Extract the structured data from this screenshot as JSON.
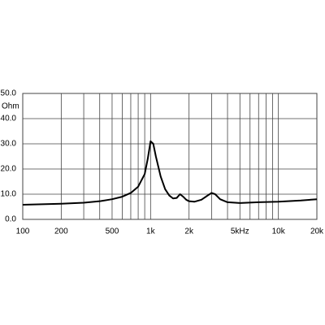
{
  "chart_data": {
    "type": "line",
    "xscale": "log",
    "grid": true,
    "color": "#000000",
    "ylabel": "Ohm",
    "x": [
      100,
      200,
      300,
      400,
      500,
      600,
      700,
      800,
      900,
      950,
      1000,
      1050,
      1100,
      1200,
      1300,
      1400,
      1500,
      1600,
      1700,
      1800,
      1900,
      2000,
      2200,
      2500,
      2800,
      3000,
      3200,
      3500,
      4000,
      5000,
      7000,
      10000,
      15000,
      20000
    ],
    "values": [
      5.8,
      6.2,
      6.6,
      7.2,
      8.0,
      9.0,
      10.5,
      13,
      18,
      24,
      31,
      30,
      25,
      17,
      12,
      9.5,
      8.3,
      8.5,
      10,
      9,
      7.8,
      7.2,
      7,
      7.8,
      9.5,
      10.5,
      10,
      8,
      6.8,
      6.5,
      6.8,
      7,
      7.5,
      8
    ],
    "xlim": [
      100,
      20000
    ],
    "ylim": [
      0,
      50
    ],
    "xticks": [
      100,
      200,
      500,
      {
        "value": 1000,
        "label": "1k"
      },
      {
        "value": 2000,
        "label": "2k"
      },
      {
        "value": 5000,
        "label": "5kHz"
      },
      {
        "value": 10000,
        "label": "10k"
      },
      {
        "value": 20000,
        "label": "20k"
      }
    ],
    "xminorticks": [
      300,
      400,
      600,
      700,
      800,
      900,
      3000,
      4000,
      6000,
      7000,
      8000,
      9000
    ],
    "yticks": [
      {
        "value": 0,
        "label": "0.0"
      },
      {
        "value": 10,
        "label": "10.0"
      },
      {
        "value": 20,
        "label": "20.0"
      },
      {
        "value": 30,
        "label": "30.0"
      },
      {
        "value": 40,
        "label": "40.0"
      },
      {
        "value": 50,
        "label": "50.0"
      }
    ]
  }
}
